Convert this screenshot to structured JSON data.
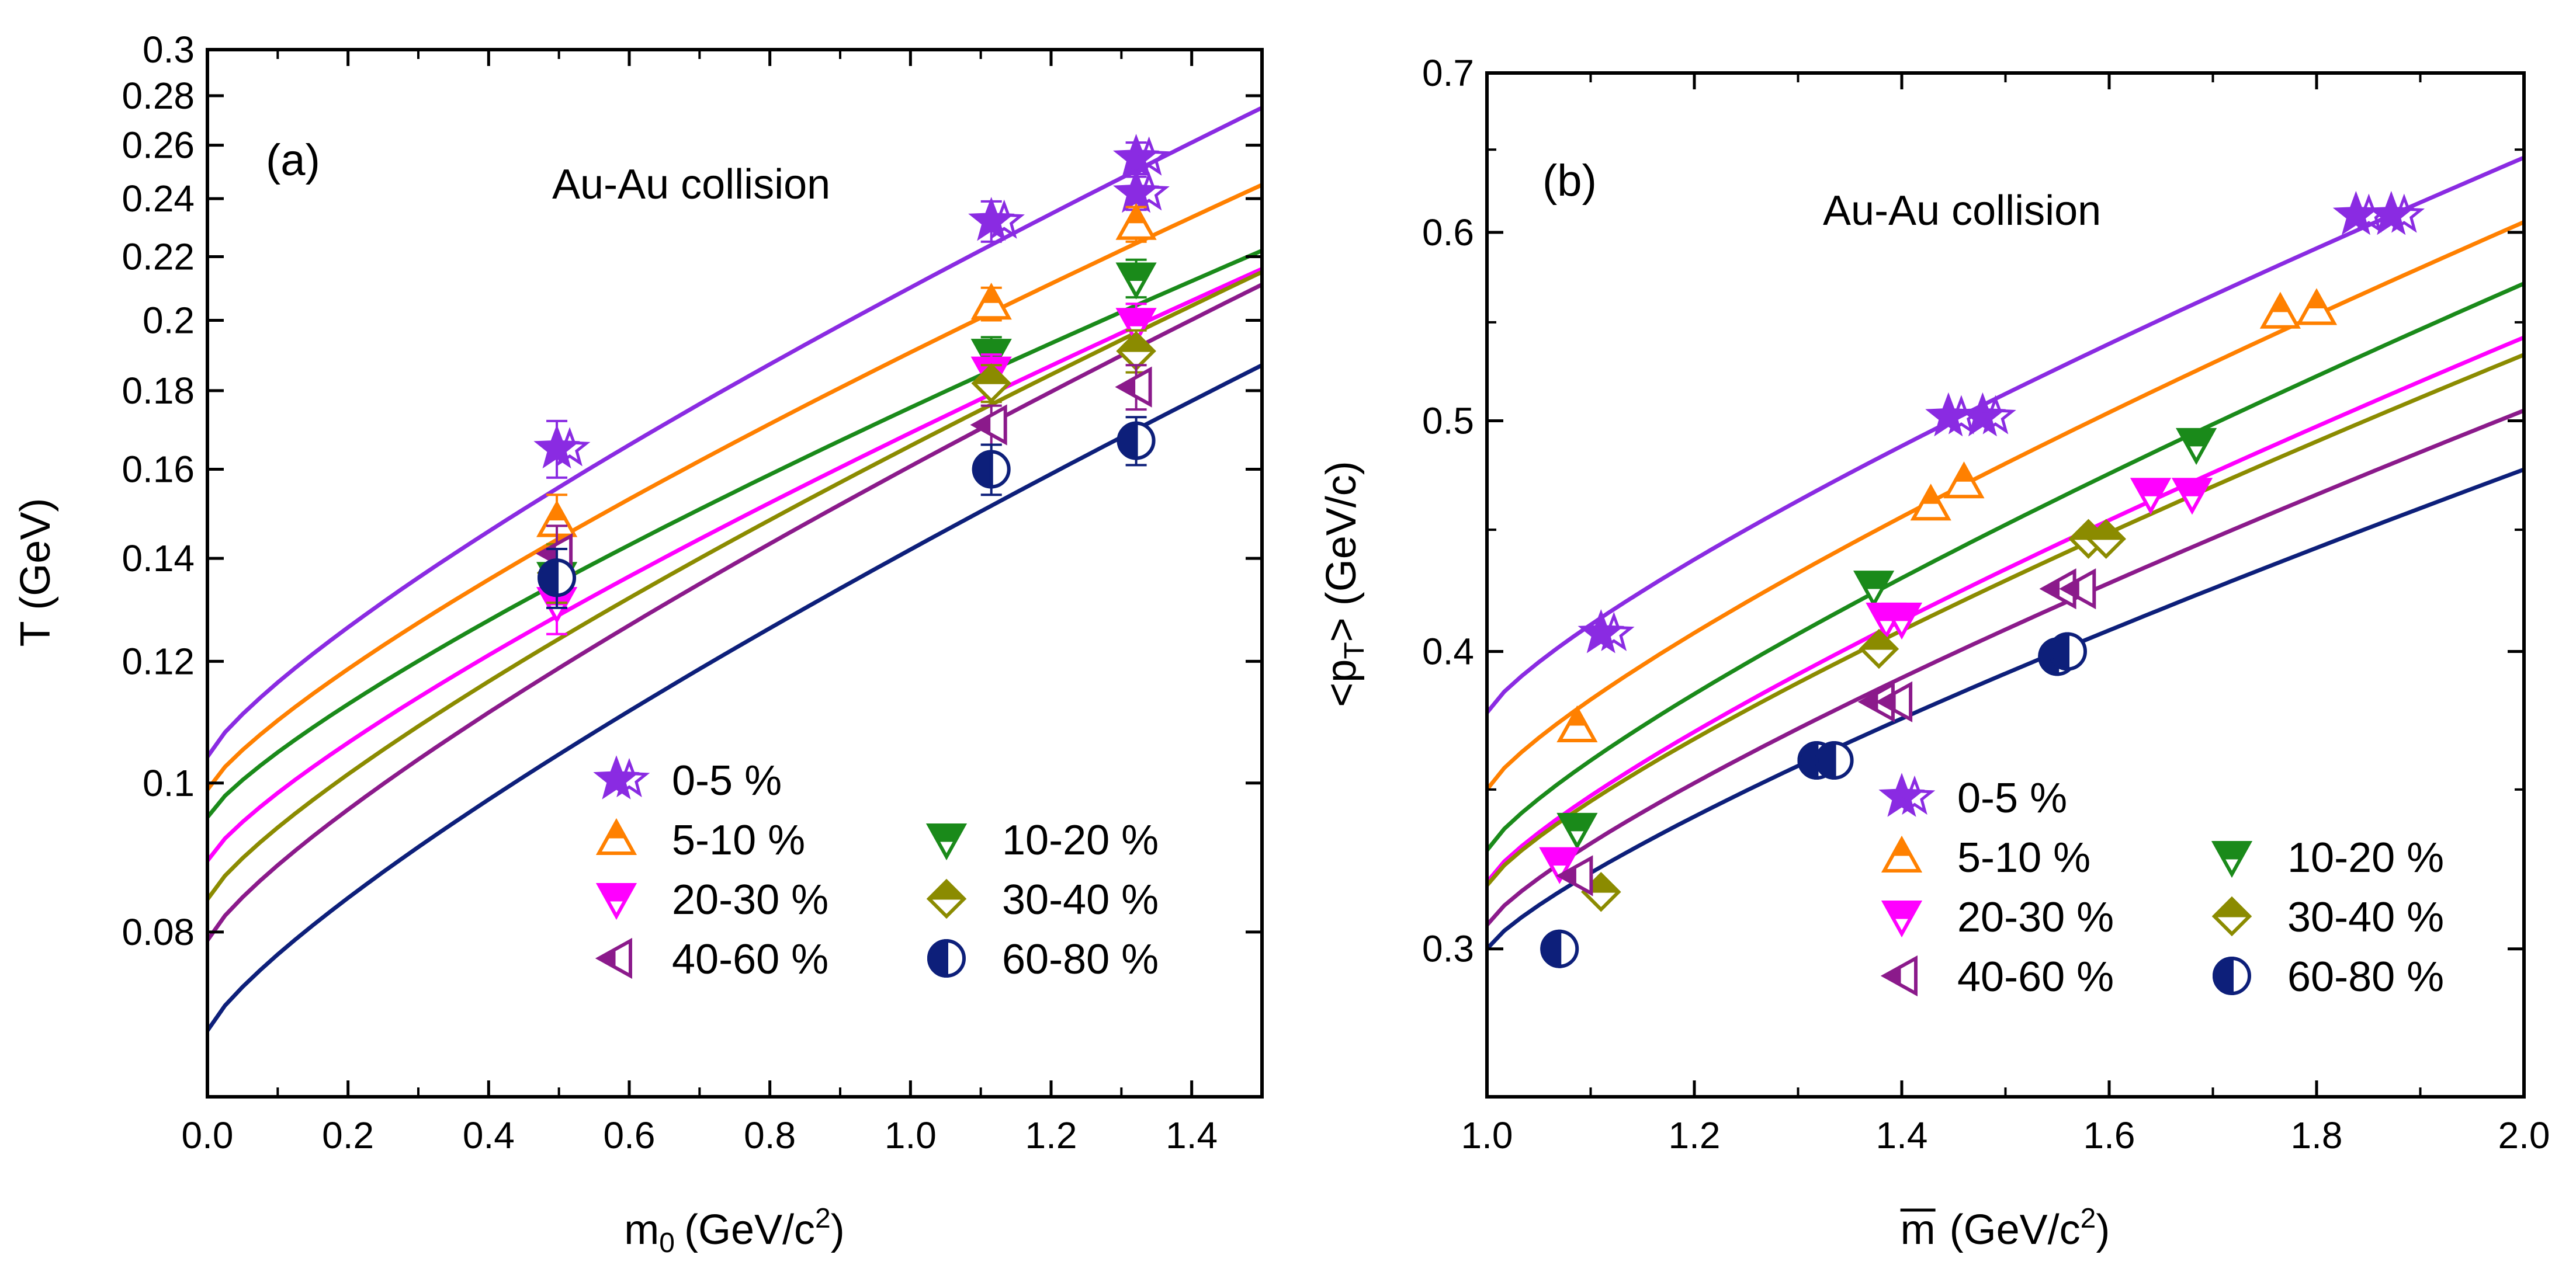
{
  "chart_data": [
    {
      "id": "a",
      "type": "scatter",
      "panel_label": "(a)",
      "annotation": "Au-Au collision",
      "xlabel": "m",
      "xlabel_sub": "0",
      "xlabel_unit": "(GeV/c",
      "xlabel_sup": "2",
      "xlabel_close": ")",
      "ylabel": "T (GeV)",
      "xlim": [
        0.0,
        1.5
      ],
      "ylim": [
        0.0625,
        0.3
      ],
      "y_scale": "log",
      "xticks": [
        0.0,
        0.2,
        0.4,
        0.6,
        0.8,
        1.0,
        1.2,
        1.4
      ],
      "xtick_labels": [
        "0.0",
        "0.2",
        "0.4",
        "0.6",
        "0.8",
        "1.0",
        "1.2",
        "1.4"
      ],
      "yticks": [
        0.08,
        0.1,
        0.12,
        0.14,
        0.16,
        0.18,
        0.2,
        0.22,
        0.24,
        0.26,
        0.28,
        0.3
      ],
      "ytick_labels": [
        "0.08",
        "0.1",
        "0.12",
        "0.14",
        "0.16",
        "0.18",
        "0.2",
        "0.22",
        "0.24",
        "0.26",
        "0.28",
        "0.3"
      ],
      "legend_position": "bottom-right",
      "series": [
        {
          "name": "0-5 %",
          "color": "#8a2be2",
          "marker": "star",
          "fit": [
            0.104,
            0.275
          ],
          "points": [
            {
              "x": 0.497,
              "y": 0.165,
              "err": 0.007
            },
            {
              "x": 1.115,
              "y": 0.232,
              "err": 0.007
            },
            {
              "x": 1.321,
              "y": 0.255,
              "err": 0.006
            },
            {
              "x": 1.321,
              "y": 0.242,
              "err": 0.006
            }
          ]
        },
        {
          "name": "5-10 %",
          "color": "#ff8000",
          "marker": "triangle-up",
          "fit": [
            0.099,
            0.245
          ],
          "points": [
            {
              "x": 0.497,
              "y": 0.148,
              "err": 0.006
            },
            {
              "x": 1.115,
              "y": 0.205,
              "err": 0.005
            },
            {
              "x": 1.321,
              "y": 0.231,
              "err": 0.006
            }
          ]
        },
        {
          "name": "10-20 %",
          "color": "#1a8a1a",
          "marker": "triangle-down",
          "fit": [
            0.095,
            0.222
          ],
          "points": [
            {
              "x": 0.497,
              "y": 0.136,
              "err": 0.006
            },
            {
              "x": 1.115,
              "y": 0.19,
              "err": 0.005
            },
            {
              "x": 1.321,
              "y": 0.213,
              "err": 0.006
            }
          ]
        },
        {
          "name": "20-30 %",
          "color": "#ff00ff",
          "marker": "triangle-down",
          "fit": [
            0.089,
            0.216
          ],
          "points": [
            {
              "x": 0.497,
              "y": 0.131,
              "err": 0.006
            },
            {
              "x": 1.115,
              "y": 0.185,
              "err": 0.005
            },
            {
              "x": 1.321,
              "y": 0.199,
              "err": 0.006
            }
          ]
        },
        {
          "name": "30-40 %",
          "color": "#8b8b00",
          "marker": "diamond",
          "fit": [
            0.084,
            0.215
          ],
          "points": [
            {
              "x": 0.497,
              "y": 0.137,
              "err": 0.006
            },
            {
              "x": 1.115,
              "y": 0.182,
              "err": 0.005
            },
            {
              "x": 1.321,
              "y": 0.191,
              "err": 0.006
            }
          ]
        },
        {
          "name": "40-60 %",
          "color": "#8b1a8b",
          "marker": "triangle-left",
          "fit": [
            0.079,
            0.211
          ],
          "points": [
            {
              "x": 0.497,
              "y": 0.141,
              "err": 0.006
            },
            {
              "x": 1.115,
              "y": 0.171,
              "err": 0.005
            },
            {
              "x": 1.321,
              "y": 0.181,
              "err": 0.006
            }
          ]
        },
        {
          "name": "60-80 %",
          "color": "#0d1f7a",
          "marker": "circle",
          "fit": [
            0.069,
            0.187
          ],
          "points": [
            {
              "x": 0.497,
              "y": 0.136,
              "err": 0.006
            },
            {
              "x": 1.115,
              "y": 0.16,
              "err": 0.006
            },
            {
              "x": 1.321,
              "y": 0.167,
              "err": 0.006
            }
          ]
        }
      ]
    },
    {
      "id": "b",
      "type": "scatter",
      "panel_label": "(b)",
      "annotation": "Au-Au collision",
      "xlabel": "m",
      "xlabel_sub": "",
      "xlabel_unit": "(GeV/c",
      "xlabel_sup": "2",
      "xlabel_close": ")",
      "xlabel_overline": true,
      "ylabel": "<p",
      "ylabel_sub": "T",
      "ylabel_rest": "> (GeV/c)",
      "xlim": [
        1.0,
        2.0
      ],
      "ylim": [
        0.26,
        0.7
      ],
      "y_scale": "log",
      "xticks": [
        1.0,
        1.2,
        1.4,
        1.6,
        1.8,
        2.0
      ],
      "xtick_labels": [
        "1.0",
        "1.2",
        "1.4",
        "1.6",
        "1.8",
        "2.0"
      ],
      "yticks": [
        0.3,
        0.4,
        0.5,
        0.6,
        0.7
      ],
      "ytick_labels": [
        "0.3",
        "0.4",
        "0.5",
        "0.6",
        "0.7"
      ],
      "legend_position": "bottom-right",
      "series": [
        {
          "name": "0-5 %",
          "color": "#8a2be2",
          "marker": "star",
          "fit": [
            0.377,
            0.645
          ],
          "points": [
            {
              "x": 1.11,
              "y": 0.407
            },
            {
              "x": 1.445,
              "y": 0.502
            },
            {
              "x": 1.478,
              "y": 0.502
            },
            {
              "x": 1.838,
              "y": 0.61
            },
            {
              "x": 1.872,
              "y": 0.61
            }
          ]
        },
        {
          "name": "5-10 %",
          "color": "#ff8000",
          "marker": "triangle-up",
          "fit": [
            0.35,
            0.606
          ],
          "points": [
            {
              "x": 1.087,
              "y": 0.372
            },
            {
              "x": 1.428,
              "y": 0.461
            },
            {
              "x": 1.46,
              "y": 0.471
            },
            {
              "x": 1.765,
              "y": 0.555
            },
            {
              "x": 1.8,
              "y": 0.557
            }
          ]
        },
        {
          "name": "10-20 %",
          "color": "#1a8a1a",
          "marker": "triangle-down",
          "fit": [
            0.33,
            0.571
          ],
          "points": [
            {
              "x": 1.087,
              "y": 0.337
            },
            {
              "x": 1.373,
              "y": 0.426
            },
            {
              "x": 1.684,
              "y": 0.489
            }
          ]
        },
        {
          "name": "20-30 %",
          "color": "#ff00ff",
          "marker": "triangle-down",
          "fit": [
            0.32,
            0.542
          ],
          "points": [
            {
              "x": 1.07,
              "y": 0.326
            },
            {
              "x": 1.385,
              "y": 0.413
            },
            {
              "x": 1.4,
              "y": 0.413
            },
            {
              "x": 1.64,
              "y": 0.466
            },
            {
              "x": 1.68,
              "y": 0.466
            }
          ]
        },
        {
          "name": "30-40 %",
          "color": "#8b8b00",
          "marker": "diamond",
          "fit": [
            0.319,
            0.533
          ],
          "points": [
            {
              "x": 1.11,
              "y": 0.317
            },
            {
              "x": 1.378,
              "y": 0.401
            },
            {
              "x": 1.58,
              "y": 0.446
            },
            {
              "x": 1.597,
              "y": 0.446
            }
          ]
        },
        {
          "name": "40-60 %",
          "color": "#8b1a8b",
          "marker": "triangle-left",
          "fit": [
            0.307,
            0.505
          ],
          "points": [
            {
              "x": 1.087,
              "y": 0.322
            },
            {
              "x": 1.378,
              "y": 0.381
            },
            {
              "x": 1.395,
              "y": 0.381
            },
            {
              "x": 1.553,
              "y": 0.425
            },
            {
              "x": 1.572,
              "y": 0.425
            }
          ]
        },
        {
          "name": "60-80 %",
          "color": "#0d1f7a",
          "marker": "circle",
          "fit": [
            0.3,
            0.477
          ],
          "points": [
            {
              "x": 1.07,
              "y": 0.3
            },
            {
              "x": 1.318,
              "y": 0.36
            },
            {
              "x": 1.335,
              "y": 0.36
            },
            {
              "x": 1.55,
              "y": 0.398
            },
            {
              "x": 1.56,
              "y": 0.4
            }
          ]
        }
      ]
    }
  ]
}
